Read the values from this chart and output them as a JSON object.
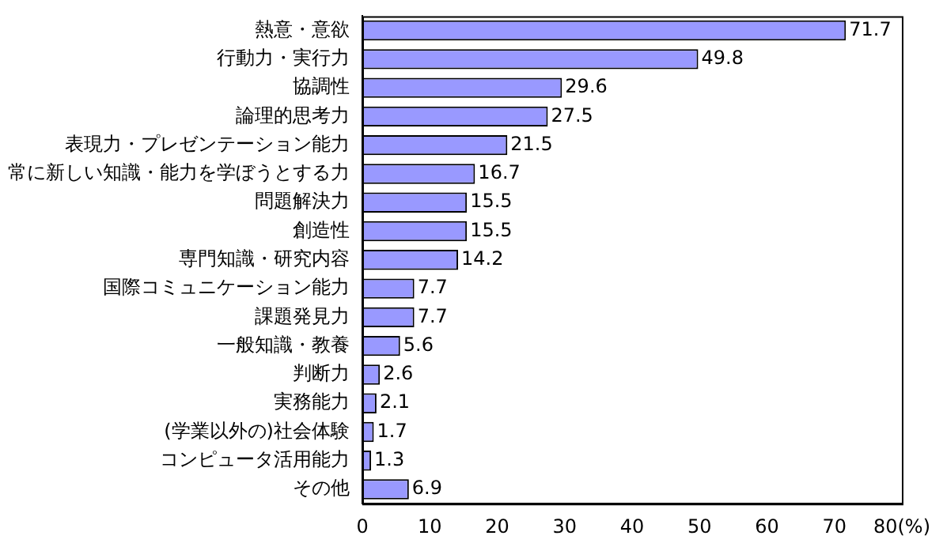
{
  "chart_data": {
    "type": "bar",
    "orientation": "horizontal",
    "categories": [
      "熱意・意欲",
      "行動力・実行力",
      "協調性",
      "論理的思考力",
      "表現力・プレゼンテーション能力",
      "常に新しい知識・能力を学ぼうとする力",
      "問題解決力",
      "創造性",
      "専門知識・研究内容",
      "国際コミュニケーション能力",
      "課題発見力",
      "一般知識・教養",
      "判断力",
      "実務能力",
      "(学業以外の)社会体験",
      "コンピュータ活用能力",
      "その他"
    ],
    "values": [
      71.7,
      49.8,
      29.6,
      27.5,
      21.5,
      16.7,
      15.5,
      15.5,
      14.2,
      7.7,
      7.7,
      5.6,
      2.6,
      2.1,
      1.7,
      1.3,
      6.9
    ],
    "color": "#9999ff",
    "data_labels": true,
    "xlim": [
      0,
      80
    ],
    "xticks": [
      0,
      10,
      20,
      30,
      40,
      50,
      60,
      70,
      {
        "value": 80,
        "label": "80(%)"
      }
    ],
    "grid": false,
    "legend": false
  }
}
